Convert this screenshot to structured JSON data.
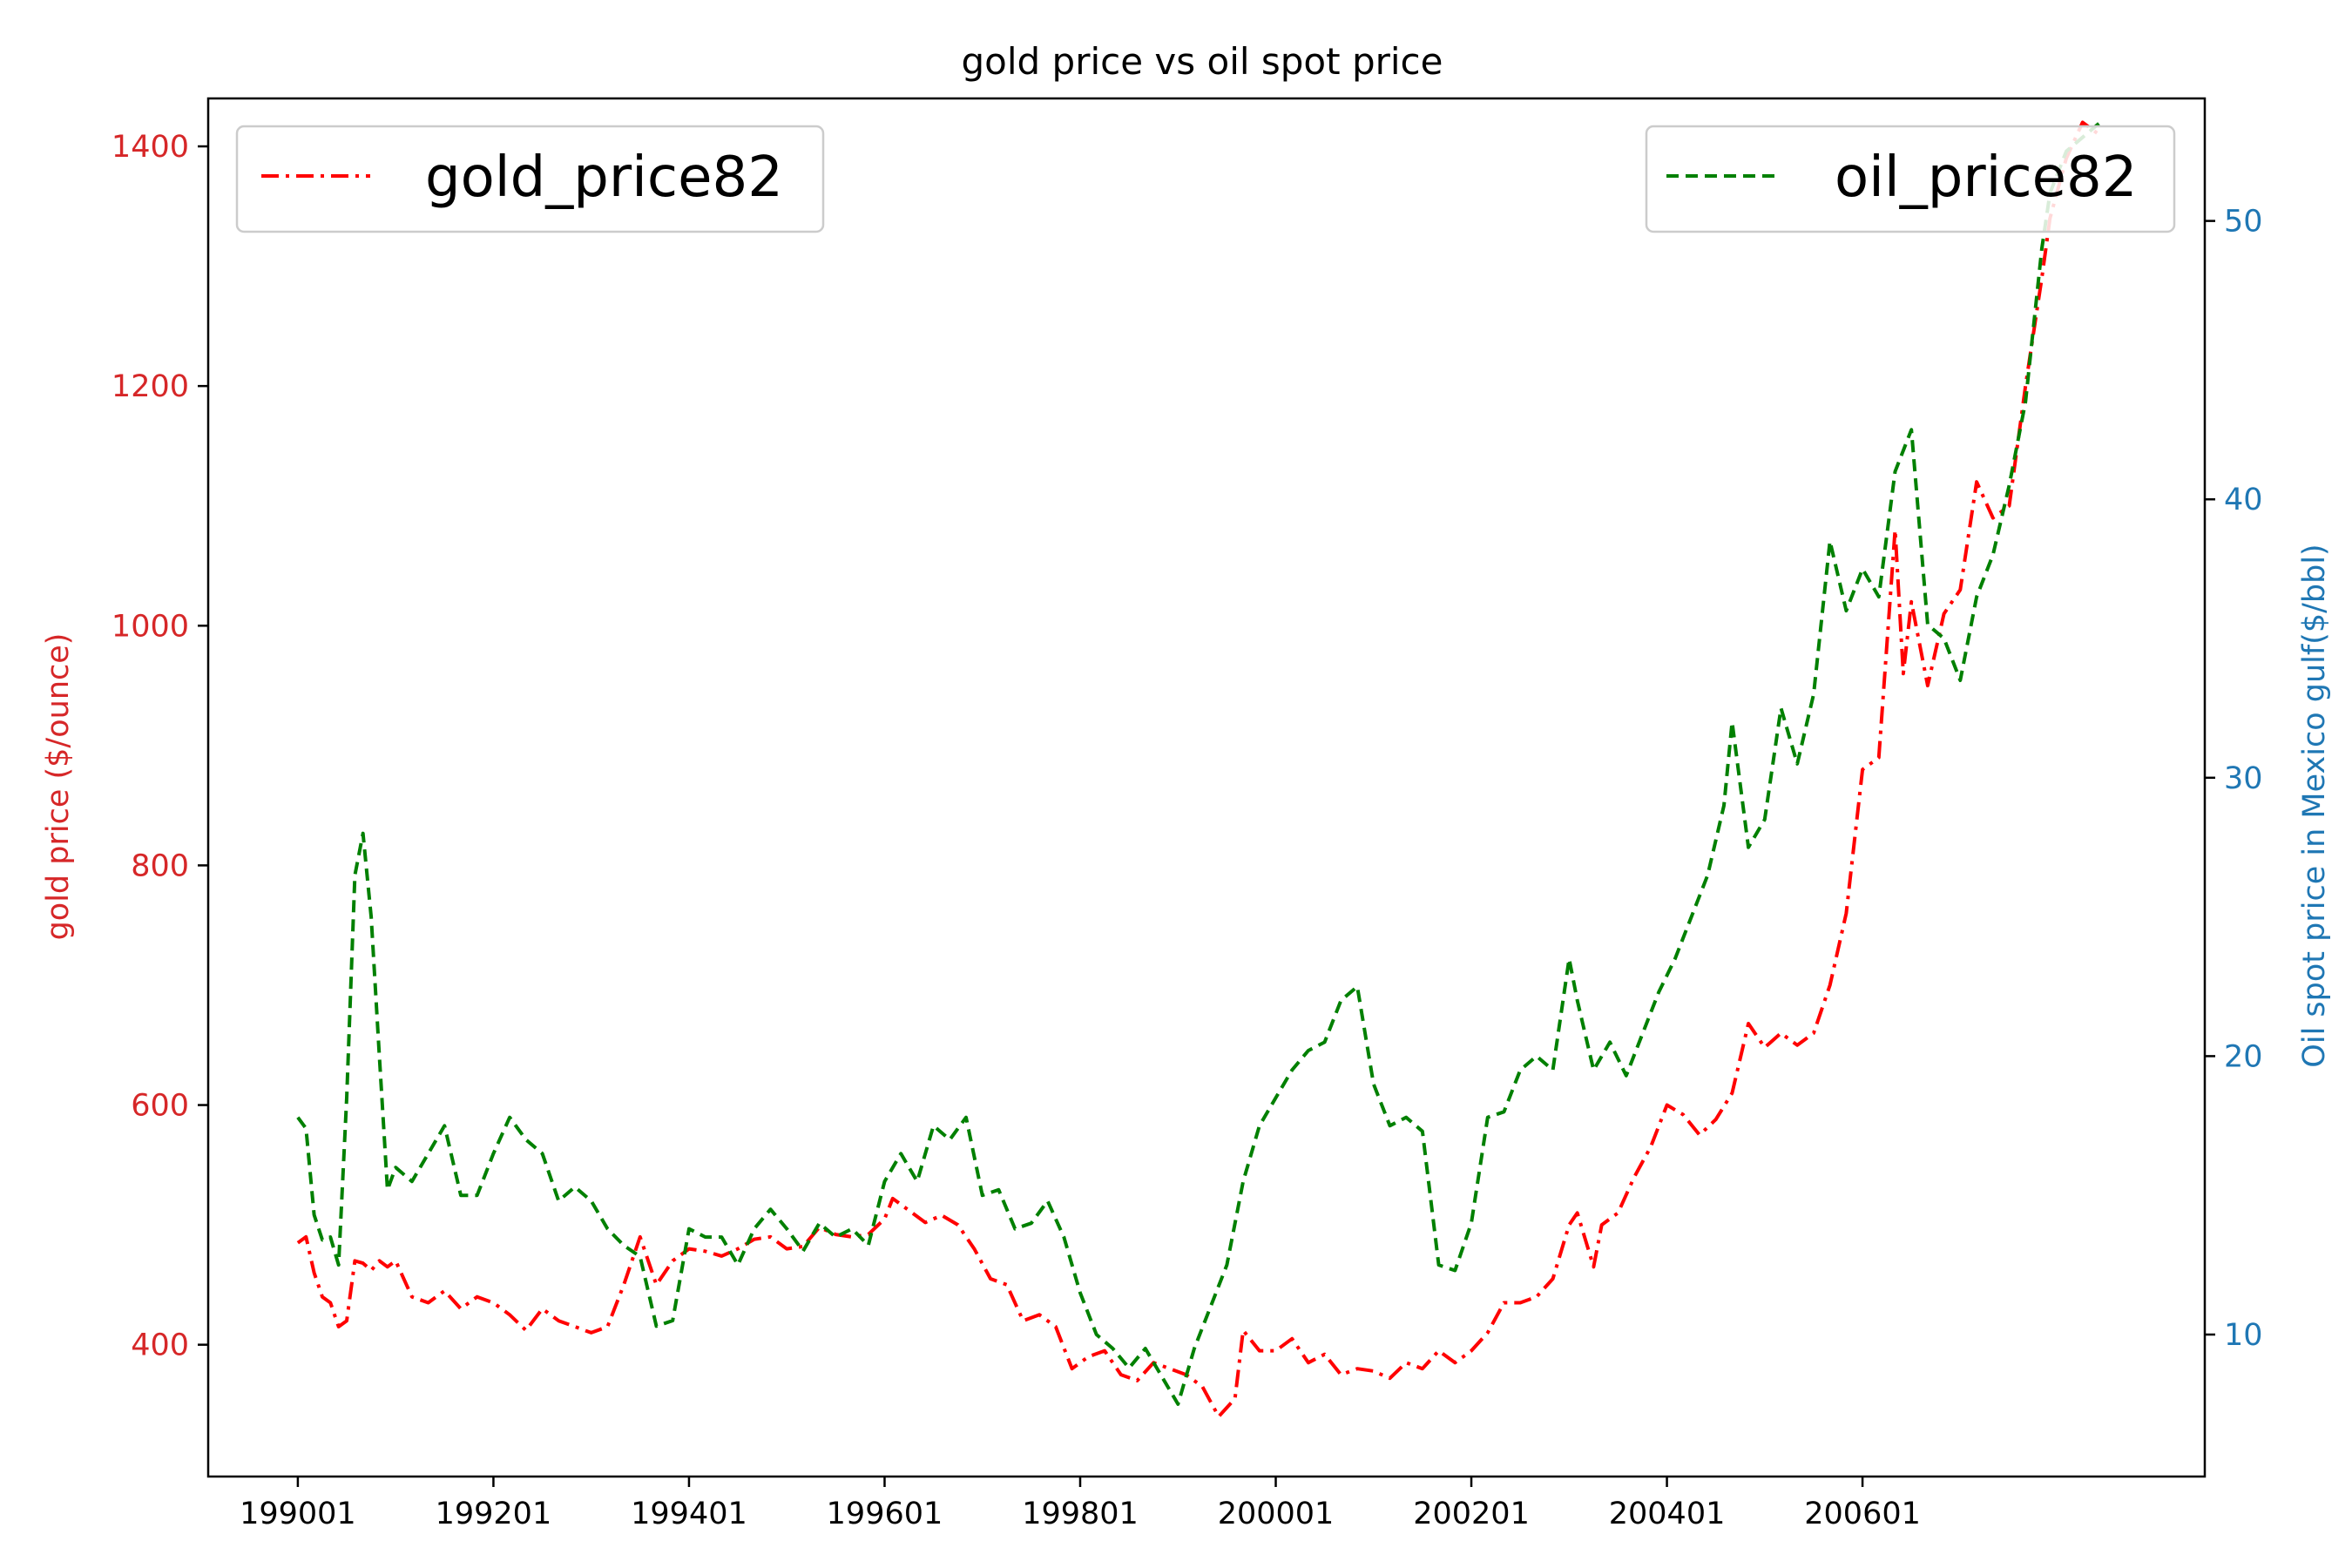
{
  "chart_data": {
    "type": "line",
    "title": "gold price vs oil spot price",
    "colors": {
      "gold_series": "#ff0000",
      "oil_series": "#008000",
      "left_axis": "#d62728",
      "right_axis": "#1f77b4",
      "frame": "#000000"
    },
    "x_axis": {
      "start": "1990-01",
      "end": "2008-06",
      "range": [
        "1989-02",
        "2009-07"
      ],
      "ticks": [
        "1990-01",
        "1992-01",
        "1994-01",
        "1996-01",
        "1998-01",
        "2000-01",
        "2002-01",
        "2004-01",
        "2006-01"
      ],
      "tick_labels": [
        "199001",
        "199201",
        "199401",
        "199601",
        "199801",
        "200001",
        "200201",
        "200401",
        "200601"
      ]
    },
    "y_left": {
      "label": "gold price ($/ounce)",
      "range": [
        290,
        1440
      ],
      "ticks": [
        400,
        600,
        800,
        1000,
        1200,
        1400
      ],
      "tick_labels": [
        "400",
        "600",
        "800",
        "1000",
        "1200",
        "1400"
      ]
    },
    "y_right": {
      "label": "Oil spot price in Mexico gulf($/bbl)",
      "range": [
        4.9,
        54.4
      ],
      "ticks": [
        10,
        20,
        30,
        40,
        50
      ],
      "tick_labels": [
        "10",
        "20",
        "30",
        "40",
        "50"
      ]
    },
    "legend_left": {
      "label": "gold_price82",
      "position": "upper-left"
    },
    "legend_right": {
      "label": "oil_price82",
      "position": "upper-right"
    },
    "series": [
      {
        "name": "gold_price82",
        "axis": "left",
        "style": "dashdot",
        "points": [
          [
            "1990-01",
            485
          ],
          [
            "1990-02",
            490
          ],
          [
            "1990-03",
            460
          ],
          [
            "1990-04",
            440
          ],
          [
            "1990-05",
            435
          ],
          [
            "1990-06",
            415
          ],
          [
            "1990-07",
            420
          ],
          [
            "1990-08",
            470
          ],
          [
            "1990-09",
            468
          ],
          [
            "1990-10",
            462
          ],
          [
            "1990-11",
            470
          ],
          [
            "1990-12",
            465
          ],
          [
            "1991-01",
            470
          ],
          [
            "1991-03",
            440
          ],
          [
            "1991-05",
            435
          ],
          [
            "1991-07",
            445
          ],
          [
            "1991-09",
            430
          ],
          [
            "1991-11",
            440
          ],
          [
            "1992-01",
            435
          ],
          [
            "1992-03",
            425
          ],
          [
            "1992-05",
            412
          ],
          [
            "1992-07",
            430
          ],
          [
            "1992-09",
            420
          ],
          [
            "1992-11",
            415
          ],
          [
            "1993-01",
            410
          ],
          [
            "1993-03",
            415
          ],
          [
            "1993-05",
            450
          ],
          [
            "1993-07",
            490
          ],
          [
            "1993-09",
            450
          ],
          [
            "1993-11",
            470
          ],
          [
            "1994-01",
            480
          ],
          [
            "1994-03",
            478
          ],
          [
            "1994-05",
            474
          ],
          [
            "1994-07",
            480
          ],
          [
            "1994-09",
            488
          ],
          [
            "1994-11",
            490
          ],
          [
            "1995-01",
            480
          ],
          [
            "1995-03",
            482
          ],
          [
            "1995-05",
            498
          ],
          [
            "1995-07",
            492
          ],
          [
            "1995-09",
            490
          ],
          [
            "1995-11",
            492
          ],
          [
            "1996-01",
            505
          ],
          [
            "1996-02",
            522
          ],
          [
            "1996-04",
            512
          ],
          [
            "1996-06",
            502
          ],
          [
            "1996-08",
            508
          ],
          [
            "1996-10",
            500
          ],
          [
            "1996-12",
            480
          ],
          [
            "1997-02",
            455
          ],
          [
            "1997-04",
            450
          ],
          [
            "1997-06",
            420
          ],
          [
            "1997-08",
            425
          ],
          [
            "1997-10",
            415
          ],
          [
            "1997-12",
            380
          ],
          [
            "1998-02",
            390
          ],
          [
            "1998-04",
            395
          ],
          [
            "1998-06",
            375
          ],
          [
            "1998-08",
            370
          ],
          [
            "1998-10",
            385
          ],
          [
            "1998-12",
            380
          ],
          [
            "1999-02",
            375
          ],
          [
            "1999-04",
            365
          ],
          [
            "1999-06",
            340
          ],
          [
            "1999-08",
            355
          ],
          [
            "1999-09",
            412
          ],
          [
            "1999-11",
            395
          ],
          [
            "2000-01",
            395
          ],
          [
            "2000-03",
            405
          ],
          [
            "2000-05",
            385
          ],
          [
            "2000-07",
            392
          ],
          [
            "2000-09",
            375
          ],
          [
            "2000-11",
            380
          ],
          [
            "2001-01",
            378
          ],
          [
            "2001-03",
            372
          ],
          [
            "2001-05",
            385
          ],
          [
            "2001-07",
            380
          ],
          [
            "2001-09",
            395
          ],
          [
            "2001-11",
            385
          ],
          [
            "2002-01",
            395
          ],
          [
            "2002-03",
            410
          ],
          [
            "2002-05",
            435
          ],
          [
            "2002-07",
            435
          ],
          [
            "2002-09",
            440
          ],
          [
            "2002-11",
            455
          ],
          [
            "2003-01",
            500
          ],
          [
            "2003-02",
            510
          ],
          [
            "2003-04",
            465
          ],
          [
            "2003-05",
            500
          ],
          [
            "2003-07",
            510
          ],
          [
            "2003-09",
            540
          ],
          [
            "2003-11",
            565
          ],
          [
            "2004-01",
            600
          ],
          [
            "2004-03",
            592
          ],
          [
            "2004-05",
            575
          ],
          [
            "2004-07",
            588
          ],
          [
            "2004-09",
            610
          ],
          [
            "2004-11",
            668
          ],
          [
            "2005-01",
            648
          ],
          [
            "2005-03",
            660
          ],
          [
            "2005-05",
            650
          ],
          [
            "2005-07",
            660
          ],
          [
            "2005-09",
            700
          ],
          [
            "2005-11",
            760
          ],
          [
            "2006-01",
            880
          ],
          [
            "2006-03",
            890
          ],
          [
            "2006-05",
            1080
          ],
          [
            "2006-06",
            960
          ],
          [
            "2006-07",
            1020
          ],
          [
            "2006-09",
            950
          ],
          [
            "2006-11",
            1010
          ],
          [
            "2007-01",
            1030
          ],
          [
            "2007-03",
            1120
          ],
          [
            "2007-05",
            1090
          ],
          [
            "2007-07",
            1100
          ],
          [
            "2007-09",
            1200
          ],
          [
            "2007-11",
            1290
          ],
          [
            "2007-12",
            1340
          ],
          [
            "2008-02",
            1390
          ],
          [
            "2008-04",
            1420
          ],
          [
            "2008-06",
            1410
          ]
        ]
      },
      {
        "name": "oil_price82",
        "axis": "right",
        "style": "dashed",
        "points": [
          [
            "1990-01",
            17.8
          ],
          [
            "1990-02",
            17.4
          ],
          [
            "1990-03",
            14.3
          ],
          [
            "1990-04",
            13.4
          ],
          [
            "1990-05",
            13.5
          ],
          [
            "1990-06",
            12.5
          ],
          [
            "1990-07",
            18.5
          ],
          [
            "1990-08",
            26.5
          ],
          [
            "1990-09",
            28.0
          ],
          [
            "1990-10",
            25.0
          ],
          [
            "1990-11",
            20.0
          ],
          [
            "1990-12",
            15.2
          ],
          [
            "1991-01",
            16.0
          ],
          [
            "1991-03",
            15.5
          ],
          [
            "1991-05",
            16.5
          ],
          [
            "1991-07",
            17.5
          ],
          [
            "1991-09",
            15.0
          ],
          [
            "1991-11",
            15.0
          ],
          [
            "1992-01",
            16.5
          ],
          [
            "1992-03",
            17.8
          ],
          [
            "1992-05",
            17.0
          ],
          [
            "1992-07",
            16.5
          ],
          [
            "1992-09",
            14.8
          ],
          [
            "1992-11",
            15.3
          ],
          [
            "1993-01",
            14.8
          ],
          [
            "1993-03",
            13.8
          ],
          [
            "1993-05",
            13.2
          ],
          [
            "1993-07",
            12.8
          ],
          [
            "1993-09",
            10.3
          ],
          [
            "1993-11",
            10.5
          ],
          [
            "1994-01",
            13.8
          ],
          [
            "1994-03",
            13.5
          ],
          [
            "1994-05",
            13.5
          ],
          [
            "1994-07",
            12.5
          ],
          [
            "1994-09",
            13.8
          ],
          [
            "1994-11",
            14.5
          ],
          [
            "1995-01",
            13.8
          ],
          [
            "1995-03",
            13.0
          ],
          [
            "1995-05",
            14.0
          ],
          [
            "1995-07",
            13.5
          ],
          [
            "1995-09",
            13.8
          ],
          [
            "1995-11",
            13.2
          ],
          [
            "1996-01",
            15.5
          ],
          [
            "1996-03",
            16.5
          ],
          [
            "1996-05",
            15.5
          ],
          [
            "1996-07",
            17.5
          ],
          [
            "1996-09",
            17.0
          ],
          [
            "1996-11",
            17.8
          ],
          [
            "1997-01",
            15.0
          ],
          [
            "1997-03",
            15.2
          ],
          [
            "1997-05",
            13.8
          ],
          [
            "1997-07",
            14.0
          ],
          [
            "1997-09",
            14.8
          ],
          [
            "1997-11",
            13.5
          ],
          [
            "1998-01",
            11.5
          ],
          [
            "1998-03",
            10.0
          ],
          [
            "1998-05",
            9.5
          ],
          [
            "1998-07",
            8.8
          ],
          [
            "1998-09",
            9.5
          ],
          [
            "1998-11",
            8.5
          ],
          [
            "1999-01",
            7.5
          ],
          [
            "1999-03",
            9.5
          ],
          [
            "1999-05",
            11.0
          ],
          [
            "1999-07",
            12.5
          ],
          [
            "1999-09",
            15.5
          ],
          [
            "1999-11",
            17.5
          ],
          [
            "2000-01",
            18.5
          ],
          [
            "2000-03",
            19.5
          ],
          [
            "2000-05",
            20.2
          ],
          [
            "2000-07",
            20.5
          ],
          [
            "2000-09",
            22.0
          ],
          [
            "2000-11",
            22.5
          ],
          [
            "2001-01",
            19.0
          ],
          [
            "2001-03",
            17.5
          ],
          [
            "2001-05",
            17.8
          ],
          [
            "2001-07",
            17.3
          ],
          [
            "2001-09",
            12.5
          ],
          [
            "2001-11",
            12.3
          ],
          [
            "2002-01",
            14.0
          ],
          [
            "2002-03",
            17.8
          ],
          [
            "2002-05",
            18.0
          ],
          [
            "2002-07",
            19.5
          ],
          [
            "2002-09",
            20.0
          ],
          [
            "2002-11",
            19.5
          ],
          [
            "2003-01",
            23.5
          ],
          [
            "2003-02",
            22.0
          ],
          [
            "2003-04",
            19.5
          ],
          [
            "2003-06",
            20.5
          ],
          [
            "2003-08",
            19.3
          ],
          [
            "2003-10",
            20.8
          ],
          [
            "2003-12",
            22.3
          ],
          [
            "2004-02",
            23.5
          ],
          [
            "2004-04",
            25.0
          ],
          [
            "2004-06",
            26.5
          ],
          [
            "2004-08",
            29.0
          ],
          [
            "2004-09",
            32.0
          ],
          [
            "2004-11",
            27.5
          ],
          [
            "2005-01",
            28.5
          ],
          [
            "2005-03",
            32.5
          ],
          [
            "2005-05",
            30.5
          ],
          [
            "2005-07",
            33.0
          ],
          [
            "2005-09",
            38.5
          ],
          [
            "2005-11",
            36.0
          ],
          [
            "2006-01",
            37.5
          ],
          [
            "2006-03",
            36.5
          ],
          [
            "2006-05",
            41.0
          ],
          [
            "2006-07",
            42.5
          ],
          [
            "2006-09",
            35.5
          ],
          [
            "2006-11",
            35.0
          ],
          [
            "2007-01",
            33.5
          ],
          [
            "2007-03",
            36.5
          ],
          [
            "2007-05",
            38.0
          ],
          [
            "2007-07",
            40.5
          ],
          [
            "2007-09",
            43.5
          ],
          [
            "2007-11",
            49.0
          ],
          [
            "2007-12",
            51.0
          ],
          [
            "2008-02",
            52.5
          ],
          [
            "2008-04",
            53.0
          ],
          [
            "2008-06",
            53.5
          ]
        ]
      }
    ]
  }
}
